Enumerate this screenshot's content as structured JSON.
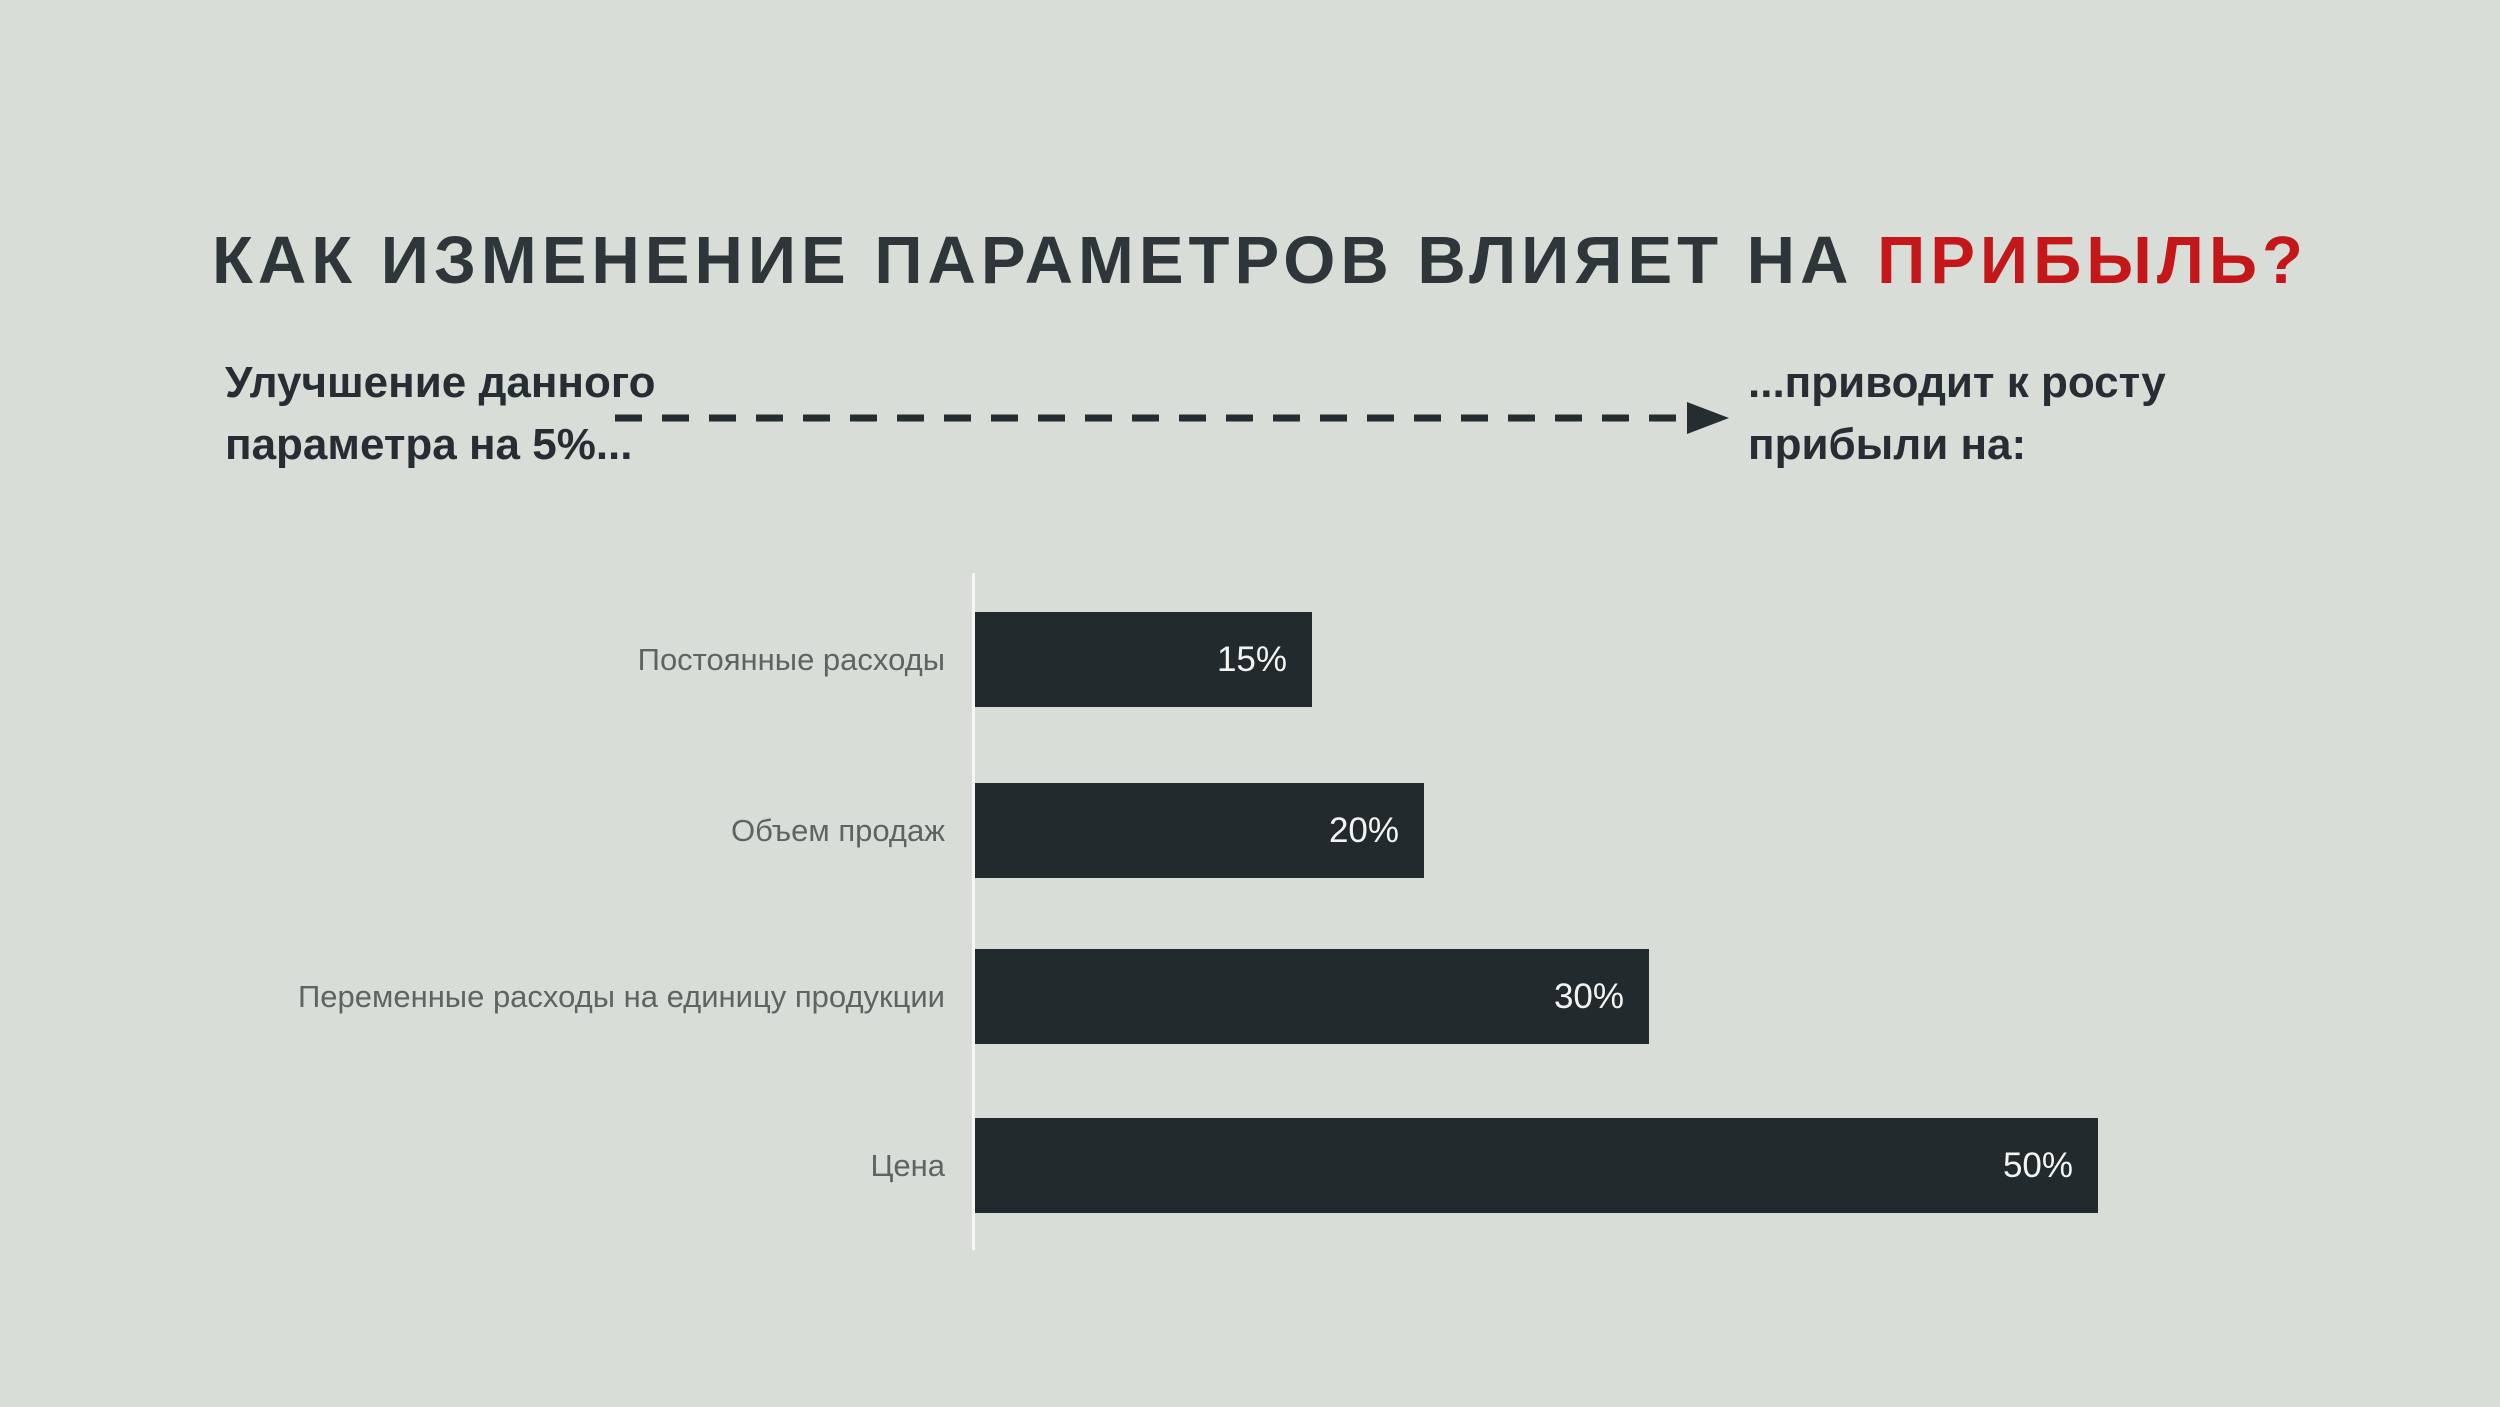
{
  "page": {
    "background_color": "#d9ddd8"
  },
  "title": {
    "text_main": "КАК ИЗМЕНЕНИЕ ПАРАМЕТРОВ ВЛИЯЕТ НА ",
    "text_accent": "ПРИБЫЛЬ?",
    "main_color": "#2f363a",
    "accent_color": "#c41719"
  },
  "annotation": {
    "left_line1": "Улучшение данного",
    "left_line2": "параметра на 5%...",
    "right_line1": "...приводит к росту",
    "right_line2": "прибыли на:",
    "arrow_color": "#262d31"
  },
  "chart_data": {
    "type": "bar",
    "orientation": "horizontal",
    "title": "",
    "categories": [
      "Постоянные расходы",
      "Объем продаж",
      "Переменные расходы на единицу продукции",
      "Цена"
    ],
    "values": [
      15,
      20,
      30,
      50
    ],
    "value_labels": [
      "15%",
      "20%",
      "30%",
      "50%"
    ],
    "xlim": [
      0,
      50
    ],
    "grid": false,
    "legend": false,
    "axis_line": true,
    "bar_color": "#222a2e",
    "value_text_color": "#f4f5f2",
    "category_text_color": "#5e6461",
    "axis_line_color": "rgba(255,255,255,0.75)"
  }
}
